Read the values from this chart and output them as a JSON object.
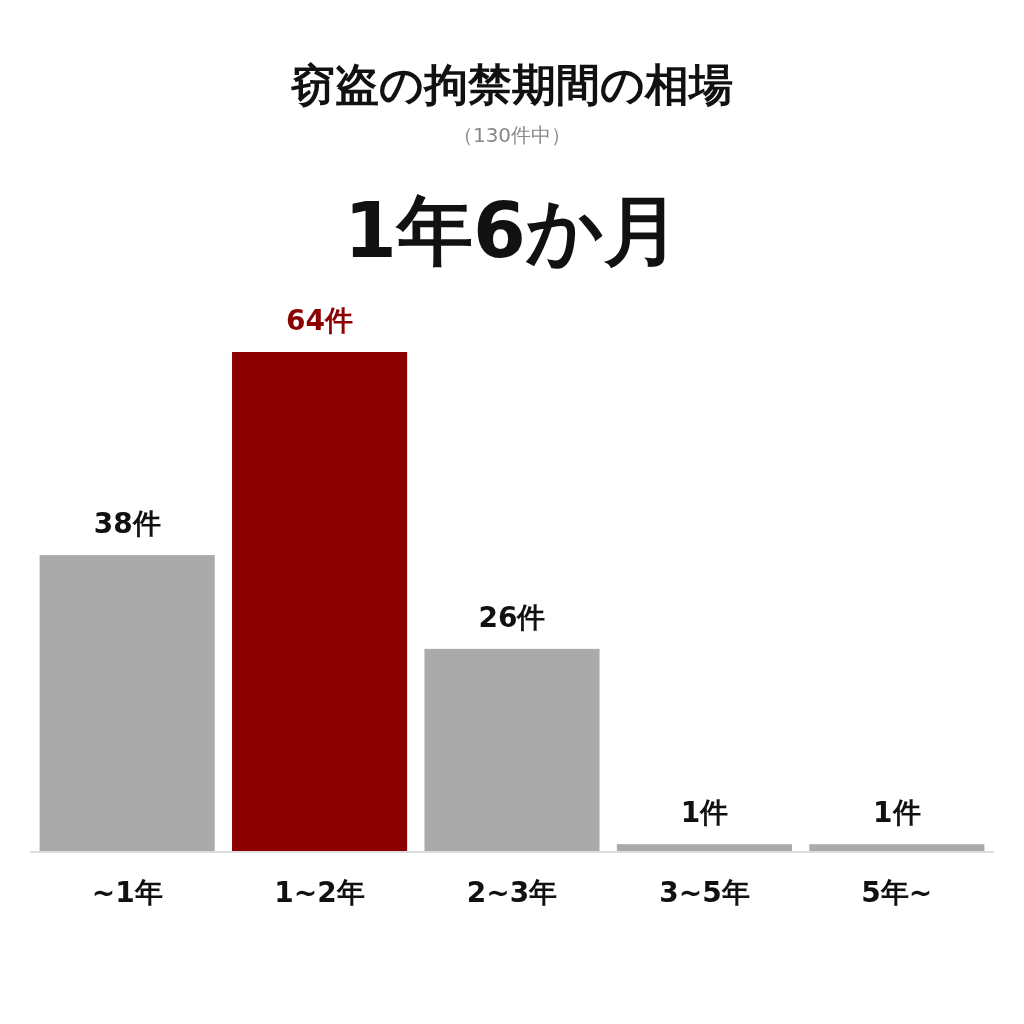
{
  "chart_data": {
    "type": "bar",
    "title": "窃盗の拘禁期間の相場",
    "subtitle": "（130件中）",
    "annotations": [
      "1年6か月"
    ],
    "categories": [
      "~1年",
      "1~2年",
      "2~3年",
      "3~5年",
      "5年~"
    ],
    "values": [
      38,
      64,
      26,
      1,
      1
    ],
    "value_labels": [
      "38件",
      "64件",
      "26件",
      "1件",
      "1件"
    ],
    "colors": [
      "#aaaaaa",
      "#8b0000",
      "#aaaaaa",
      "#aaaaaa",
      "#aaaaaa"
    ]
  }
}
